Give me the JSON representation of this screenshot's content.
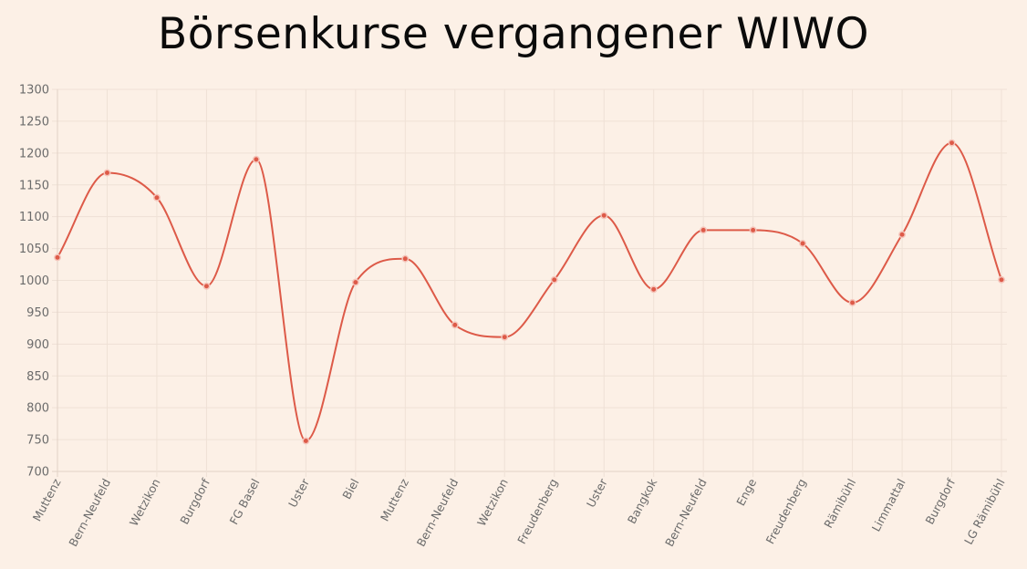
{
  "title": "Börsenkurse vergangener WIWO",
  "colors": {
    "background": "#fcf0e6",
    "line": "#dd5a48",
    "grid": "#efe1d6",
    "tick_text": "#6b6b6b"
  },
  "chart_data": {
    "type": "line",
    "title": "Börsenkurse vergangener WIWO",
    "xlabel": "",
    "ylabel": "",
    "categories": [
      "Muttenz",
      "Bern-Neufeld",
      "Wetzikon",
      "Burgdorf",
      "FG Basel",
      "Uster",
      "Biel",
      "Muttenz",
      "Bern-Neufeld",
      "Wetzikon",
      "Freudenberg",
      "Uster",
      "Bangkok",
      "Bern-Neufeld",
      "Enge",
      "Freudenberg",
      "Rämibühl",
      "Limmattal",
      "Burgdorf",
      "LG Rämibühl"
    ],
    "series": [
      {
        "values": [
          1036,
          1169,
          1130,
          991,
          1190,
          748,
          997,
          1034,
          930,
          911,
          1001,
          1102,
          986,
          1079,
          1079,
          1058,
          965,
          1072,
          1216,
          1001
        ]
      }
    ],
    "ylim": [
      700,
      1300
    ],
    "yticks": [
      "1300",
      "1250",
      "1200",
      "1150",
      "1100",
      "1050",
      "1000",
      "950",
      "900",
      "850",
      "800",
      "750",
      "700"
    ],
    "grid": true,
    "legend": "none",
    "curve": "smooth"
  }
}
